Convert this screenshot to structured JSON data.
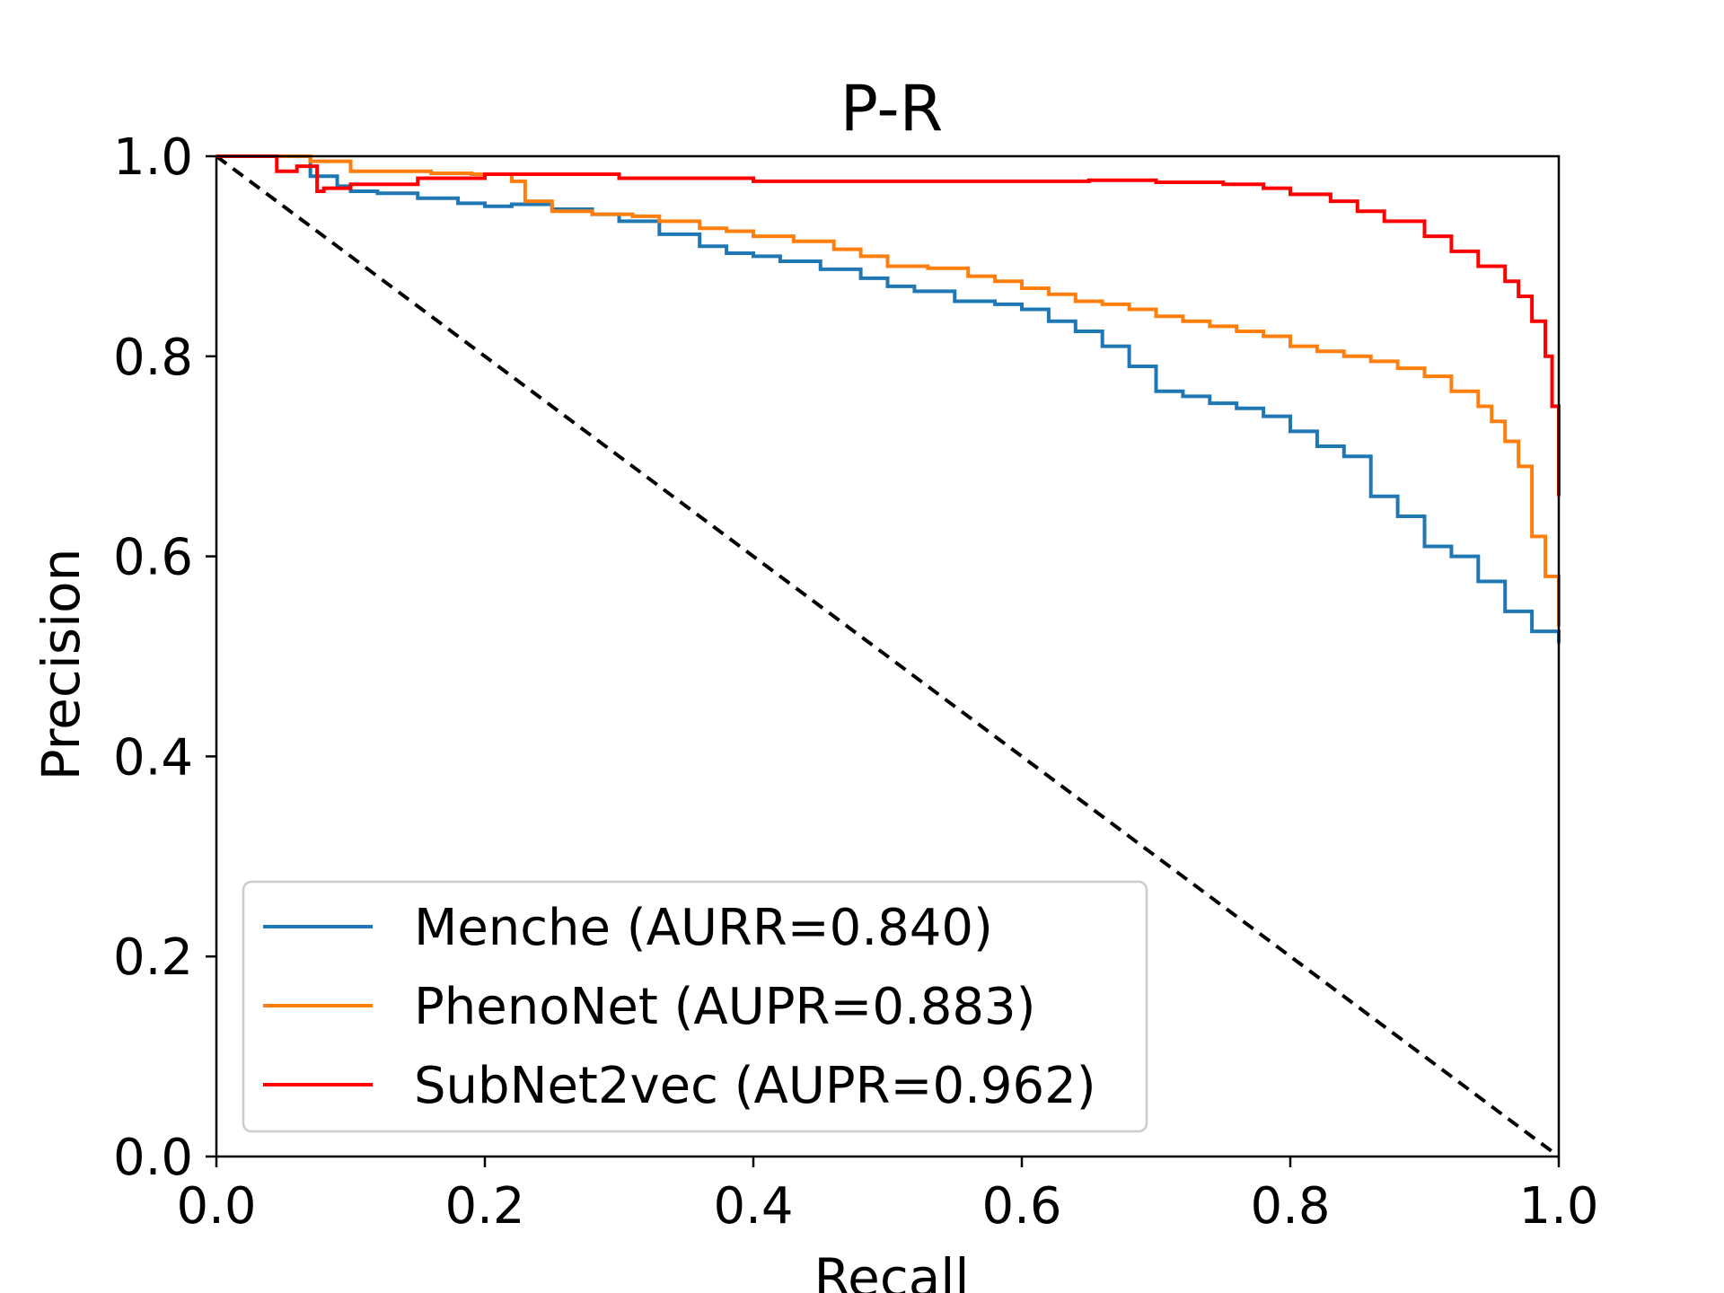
{
  "chart_data": {
    "type": "line",
    "title": "P-R",
    "xlabel": "Recall",
    "ylabel": "Precision",
    "xlim": [
      0.0,
      1.0
    ],
    "ylim": [
      0.0,
      1.0
    ],
    "grid": false,
    "legend_position": "lower-left",
    "x_ticks": [
      "0.0",
      "0.2",
      "0.4",
      "0.6",
      "0.8",
      "1.0"
    ],
    "y_ticks": [
      "0.0",
      "0.2",
      "0.4",
      "0.6",
      "0.8",
      "1.0"
    ],
    "series": [
      {
        "name": "Menche (AURR=0.840)",
        "color": "#1f77b4",
        "x": [
          0.0,
          0.06,
          0.07,
          0.09,
          0.1,
          0.12,
          0.15,
          0.18,
          0.2,
          0.22,
          0.25,
          0.28,
          0.3,
          0.33,
          0.36,
          0.38,
          0.4,
          0.42,
          0.45,
          0.48,
          0.5,
          0.52,
          0.55,
          0.58,
          0.6,
          0.62,
          0.64,
          0.66,
          0.68,
          0.7,
          0.72,
          0.74,
          0.76,
          0.78,
          0.8,
          0.82,
          0.84,
          0.86,
          0.88,
          0.9,
          0.92,
          0.94,
          0.96,
          0.98,
          1.0
        ],
        "y": [
          1.0,
          1.0,
          0.98,
          0.97,
          0.965,
          0.963,
          0.958,
          0.953,
          0.95,
          0.952,
          0.947,
          0.942,
          0.935,
          0.922,
          0.91,
          0.903,
          0.9,
          0.895,
          0.887,
          0.878,
          0.87,
          0.865,
          0.855,
          0.852,
          0.847,
          0.835,
          0.825,
          0.81,
          0.79,
          0.765,
          0.76,
          0.753,
          0.748,
          0.74,
          0.725,
          0.71,
          0.7,
          0.66,
          0.64,
          0.61,
          0.6,
          0.575,
          0.545,
          0.525,
          0.513
        ]
      },
      {
        "name": "PhenoNet (AUPR=0.883)",
        "color": "#ff7f0e",
        "x": [
          0.0,
          0.07,
          0.1,
          0.13,
          0.16,
          0.19,
          0.22,
          0.23,
          0.25,
          0.28,
          0.31,
          0.33,
          0.36,
          0.38,
          0.4,
          0.43,
          0.46,
          0.48,
          0.5,
          0.53,
          0.56,
          0.58,
          0.6,
          0.62,
          0.64,
          0.66,
          0.68,
          0.7,
          0.72,
          0.74,
          0.76,
          0.78,
          0.8,
          0.82,
          0.84,
          0.86,
          0.88,
          0.9,
          0.92,
          0.94,
          0.95,
          0.96,
          0.97,
          0.98,
          0.99,
          1.0
        ],
        "y": [
          1.0,
          0.995,
          0.985,
          0.985,
          0.983,
          0.982,
          0.975,
          0.955,
          0.945,
          0.942,
          0.94,
          0.935,
          0.928,
          0.925,
          0.92,
          0.915,
          0.907,
          0.9,
          0.89,
          0.888,
          0.88,
          0.875,
          0.868,
          0.862,
          0.855,
          0.852,
          0.847,
          0.84,
          0.835,
          0.83,
          0.825,
          0.82,
          0.81,
          0.805,
          0.8,
          0.795,
          0.788,
          0.78,
          0.765,
          0.75,
          0.735,
          0.715,
          0.69,
          0.62,
          0.58,
          0.53
        ]
      },
      {
        "name": "SubNet2vec (AUPR=0.962)",
        "color": "#ff0000",
        "x": [
          0.0,
          0.04,
          0.045,
          0.06,
          0.075,
          0.08,
          0.1,
          0.15,
          0.2,
          0.28,
          0.3,
          0.35,
          0.4,
          0.5,
          0.6,
          0.65,
          0.7,
          0.75,
          0.78,
          0.8,
          0.83,
          0.85,
          0.87,
          0.9,
          0.92,
          0.94,
          0.96,
          0.97,
          0.98,
          0.99,
          0.995,
          1.0
        ],
        "y": [
          1.0,
          1.0,
          0.985,
          0.99,
          0.965,
          0.968,
          0.972,
          0.978,
          0.982,
          0.982,
          0.978,
          0.978,
          0.975,
          0.975,
          0.975,
          0.976,
          0.974,
          0.972,
          0.968,
          0.962,
          0.955,
          0.945,
          0.935,
          0.92,
          0.905,
          0.89,
          0.875,
          0.86,
          0.835,
          0.8,
          0.75,
          0.66
        ]
      }
    ],
    "baseline": {
      "x": [
        0.0,
        1.0
      ],
      "y": [
        1.0,
        0.0
      ],
      "color": "#000000",
      "style": "dashed"
    }
  }
}
